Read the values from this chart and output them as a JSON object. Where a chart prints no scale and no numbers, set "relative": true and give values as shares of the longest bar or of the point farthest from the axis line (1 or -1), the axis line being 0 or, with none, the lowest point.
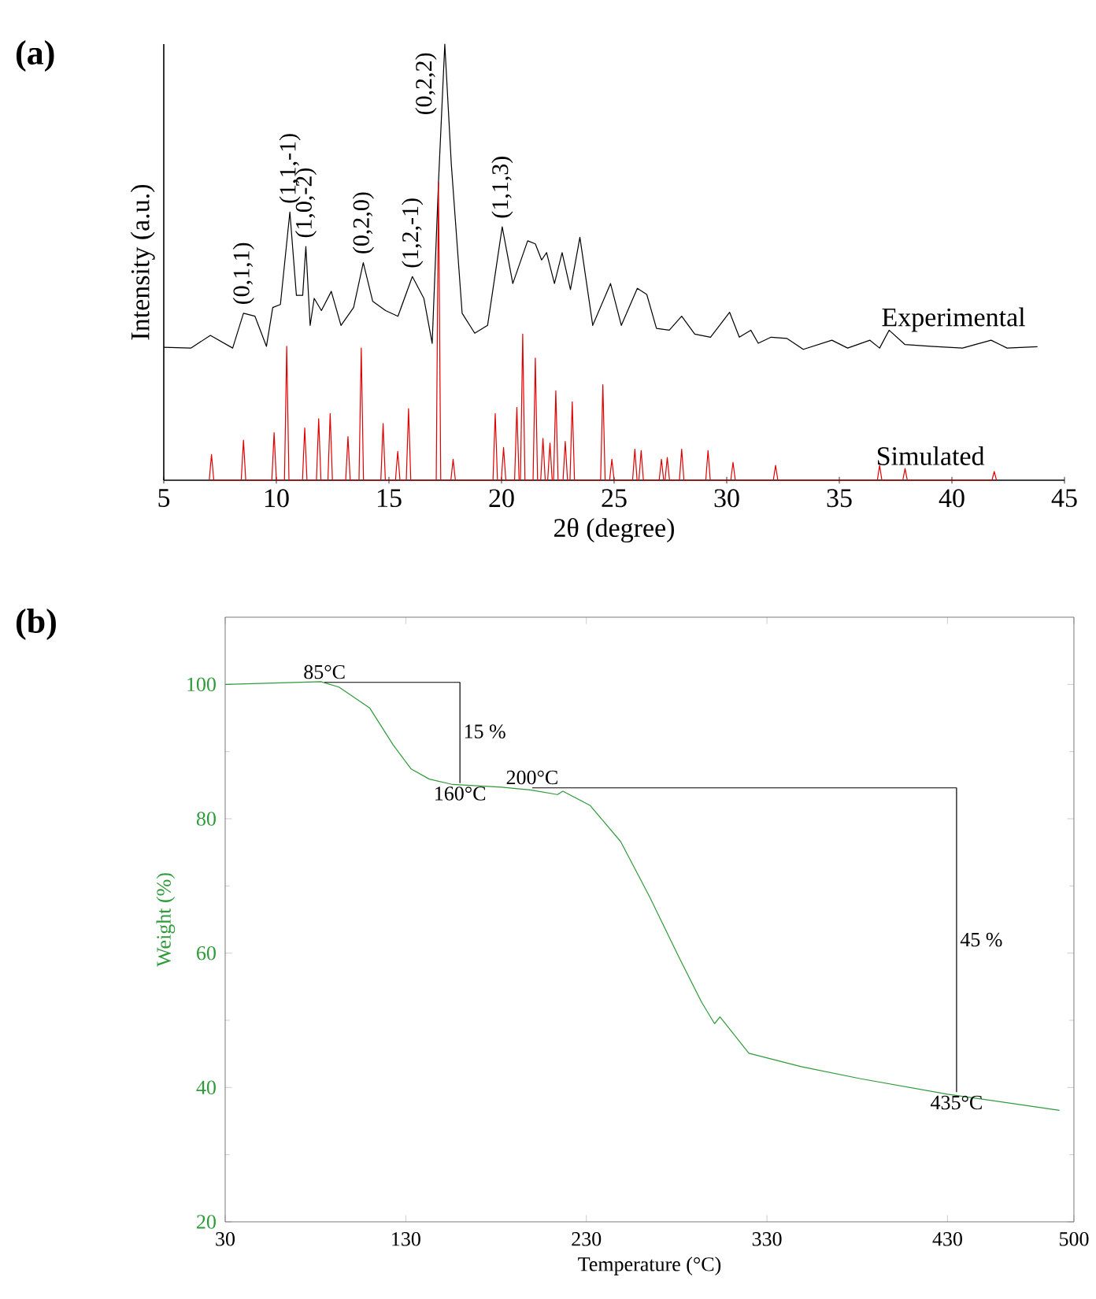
{
  "chart_data": [
    {
      "type": "line",
      "title": "(a)",
      "xlabel": "2θ (degree)",
      "ylabel": "Intensity (a.u.)",
      "relative": true,
      "xlim": [
        5,
        45
      ],
      "xticks": [
        5,
        10,
        15,
        20,
        25,
        30,
        35,
        40,
        45
      ],
      "legend": false,
      "marker": "none",
      "line_style": "solid",
      "series": [
        {
          "name": "Experimental",
          "color": "#000000",
          "x": [
            5.0,
            6.2,
            7.07,
            8.06,
            8.54,
            9.05,
            9.56,
            9.84,
            10.18,
            10.6,
            10.89,
            11.17,
            11.31,
            11.5,
            11.68,
            12.0,
            12.44,
            12.87,
            13.43,
            13.86,
            14.28,
            14.85,
            15.4,
            16.04,
            16.55,
            16.92,
            17.2,
            17.48,
            17.77,
            18.25,
            18.81,
            19.38,
            20.03,
            20.5,
            21.16,
            21.5,
            21.78,
            22.0,
            22.35,
            22.69,
            23.06,
            23.48,
            24.05,
            24.84,
            25.32,
            26.03,
            26.45,
            26.88,
            27.45,
            28.0,
            28.58,
            29.28,
            30.13,
            30.56,
            31.07,
            31.4,
            31.97,
            32.68,
            33.4,
            34.67,
            35.37,
            36.36,
            36.79,
            37.21,
            37.92,
            39.05,
            40.47,
            41.74,
            42.45,
            43.8
          ],
          "values": [
            0.305,
            0.303,
            0.332,
            0.303,
            0.383,
            0.376,
            0.307,
            0.396,
            0.403,
            0.615,
            0.424,
            0.424,
            0.536,
            0.355,
            0.417,
            0.389,
            0.433,
            0.355,
            0.396,
            0.499,
            0.41,
            0.389,
            0.376,
            0.467,
            0.417,
            0.314,
            0.683,
            1.0,
            0.724,
            0.383,
            0.337,
            0.355,
            0.581,
            0.451,
            0.549,
            0.542,
            0.505,
            0.522,
            0.451,
            0.522,
            0.437,
            0.557,
            0.355,
            0.451,
            0.355,
            0.44,
            0.426,
            0.348,
            0.344,
            0.376,
            0.335,
            0.328,
            0.385,
            0.328,
            0.344,
            0.314,
            0.328,
            0.325,
            0.3,
            0.321,
            0.303,
            0.321,
            0.303,
            0.344,
            0.311,
            0.307,
            0.303,
            0.321,
            0.303,
            0.306
          ]
        },
        {
          "name": "Simulated",
          "color": "#e00000",
          "x": [
            7.02,
            7.12,
            7.22,
            8.44,
            8.54,
            8.64,
            9.8,
            9.9,
            10.0,
            10.36,
            10.46,
            10.56,
            11.16,
            11.26,
            11.36,
            11.78,
            11.88,
            11.98,
            12.29,
            12.39,
            12.49,
            13.08,
            13.18,
            13.28,
            13.67,
            13.77,
            13.87,
            14.64,
            14.74,
            14.84,
            15.29,
            15.39,
            15.49,
            15.77,
            15.87,
            15.97,
            17.1,
            17.2,
            17.3,
            17.75,
            17.85,
            17.95,
            19.62,
            19.72,
            19.82,
            19.99,
            20.09,
            20.19,
            20.58,
            20.68,
            20.78,
            20.84,
            20.94,
            21.04,
            21.4,
            21.5,
            21.6,
            21.74,
            21.84,
            21.94,
            22.05,
            22.15,
            22.25,
            22.31,
            22.41,
            22.51,
            22.73,
            22.83,
            22.93,
            23.04,
            23.14,
            23.24,
            24.4,
            24.5,
            24.6,
            24.8,
            24.9,
            25.0,
            25.82,
            25.92,
            26.02,
            26.1,
            26.2,
            26.3,
            27.0,
            27.1,
            27.2,
            27.26,
            27.36,
            27.46,
            27.9,
            28.0,
            28.1,
            29.07,
            29.17,
            29.27,
            30.18,
            30.28,
            30.38,
            32.07,
            32.17,
            32.27,
            36.69,
            36.79,
            36.89,
            37.82,
            37.92,
            38.02,
            41.78,
            41.88,
            41.98
          ],
          "values": [
            0,
            0.059,
            0,
            0,
            0.092,
            0,
            0,
            0.109,
            0,
            0,
            0.307,
            0,
            0,
            0.12,
            0,
            0,
            0.141,
            0,
            0,
            0.153,
            0,
            0,
            0.1,
            0,
            0,
            0.303,
            0,
            0,
            0.13,
            0,
            0,
            0.066,
            0,
            0,
            0.164,
            0,
            0,
            0.683,
            0,
            0,
            0.048,
            0,
            0,
            0.153,
            0,
            0,
            0.075,
            0,
            0,
            0.167,
            0,
            0,
            0.335,
            0,
            0,
            0.28,
            0,
            0,
            0.096,
            0,
            0,
            0.085,
            0,
            0,
            0.205,
            0,
            0,
            0.089,
            0,
            0,
            0.18,
            0,
            0,
            0.219,
            0,
            0,
            0.048,
            0,
            0,
            0.071,
            0,
            0,
            0.068,
            0,
            0,
            0.048,
            0,
            0,
            0.052,
            0,
            0,
            0.071,
            0,
            0,
            0.068,
            0,
            0,
            0.041,
            0,
            0,
            0.034,
            0,
            0,
            0.034,
            0,
            0,
            0.027,
            0,
            0,
            0.02,
            0
          ]
        }
      ],
      "annotations": [
        {
          "text": "(0,1,1)",
          "x": 8.54,
          "y": 0.383
        },
        {
          "text": "(1,1,-1)",
          "x": 10.6,
          "y": 0.615
        },
        {
          "text": "(1,0,-2)",
          "x": 11.31,
          "y": 0.536
        },
        {
          "text": "(0,2,0)",
          "x": 13.86,
          "y": 0.499
        },
        {
          "text": "(1,2,-1)",
          "x": 16.04,
          "y": 0.467
        },
        {
          "text": "(0,2,2)",
          "x": 17.48,
          "y": 1.0
        },
        {
          "text": "(1,1,3)",
          "x": 20.03,
          "y": 0.581
        }
      ]
    },
    {
      "type": "line",
      "title": "(b)",
      "xlabel": "Temperature (°C)",
      "ylabel": "Weight (%)",
      "xlim": [
        30,
        500
      ],
      "ylim": [
        20,
        110
      ],
      "xticks": [
        30,
        130,
        230,
        330,
        430,
        500
      ],
      "yticks": [
        20,
        40,
        60,
        80,
        100
      ],
      "legend": false,
      "marker": "none",
      "line_style": "solid",
      "grid": false,
      "series": [
        {
          "color": "#2e9a3a",
          "x": [
            30,
            83,
            93,
            110,
            123,
            133,
            143,
            156,
            183,
            199,
            214,
            217,
            232,
            249,
            265,
            282,
            294,
            301,
            304,
            320,
            349,
            382,
            430,
            492
          ],
          "values": [
            100,
            100.4,
            99.6,
            96.5,
            91,
            87.4,
            85.9,
            85.1,
            84.7,
            84.3,
            83.6,
            84.1,
            82,
            76.6,
            68.4,
            59,
            52.6,
            49.5,
            50.5,
            45.1,
            43.1,
            41.3,
            39,
            36.6
          ]
        },
        {
          "color": "#000000",
          "x": [
            85,
            160,
            160
          ],
          "values": [
            100.3,
            100.3,
            85.3
          ]
        },
        {
          "color": "#000000",
          "x": [
            200,
            435,
            435
          ],
          "values": [
            84.6,
            84.6,
            39.3
          ]
        }
      ],
      "annotations": [
        {
          "text": "85°C",
          "x": 85,
          "y": 100.3
        },
        {
          "text": "15 %",
          "x": 160,
          "y": 93
        },
        {
          "text": "200°C",
          "x": 200,
          "y": 84.6
        },
        {
          "text": "160°C",
          "x": 160,
          "y": 85.3
        },
        {
          "text": "45 %",
          "x": 435,
          "y": 62
        },
        {
          "text": "435°C",
          "x": 435,
          "y": 39.3
        }
      ]
    }
  ]
}
